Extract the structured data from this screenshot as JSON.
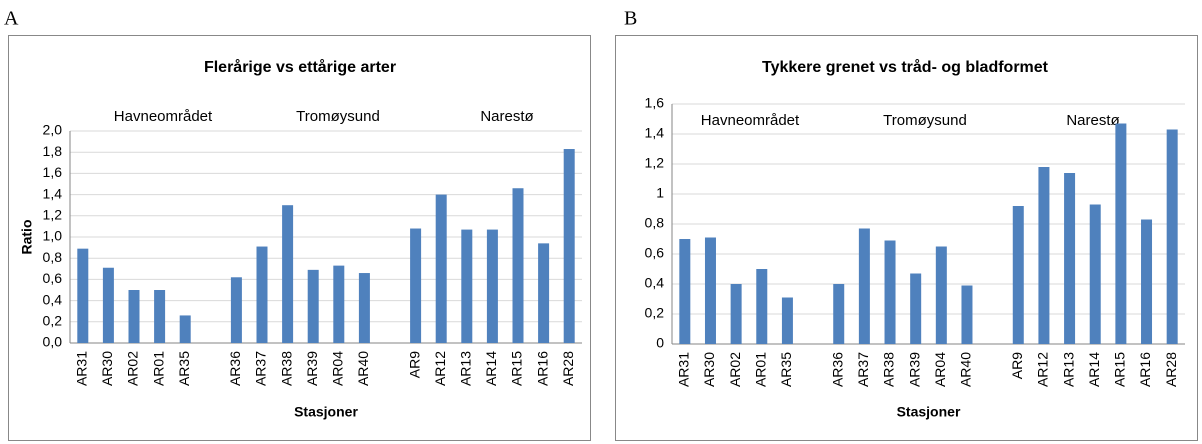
{
  "chart_data": [
    {
      "type": "bar",
      "panel": "A",
      "title": "Flerårige vs ettårige arter",
      "ylabel": "Ratio",
      "xlabel": "Stasjoner",
      "annotations": [
        "Havneområdet",
        "Tromøysund",
        "Narestø"
      ],
      "categories": [
        "AR31",
        "AR30",
        "AR02",
        "AR01",
        "AR35",
        null,
        "AR36",
        "AR37",
        "AR38",
        "AR39",
        "AR04",
        "AR40",
        null,
        "AR9",
        "AR12",
        "AR13",
        "AR14",
        "AR15",
        "AR16",
        "AR28"
      ],
      "values": [
        0.89,
        0.71,
        0.5,
        0.5,
        0.26,
        null,
        0.62,
        0.91,
        1.3,
        0.69,
        0.73,
        0.66,
        null,
        1.08,
        1.4,
        1.07,
        1.07,
        1.46,
        0.94,
        1.83
      ],
      "color": "#4f81bd",
      "grid": true,
      "ylim": [
        0,
        2.0
      ],
      "yticks": [
        {
          "value": 0,
          "label": "0,0"
        },
        {
          "value": 0.2,
          "label": "0,2"
        },
        {
          "value": 0.4,
          "label": "0,4"
        },
        {
          "value": 0.6,
          "label": "0,6"
        },
        {
          "value": 0.8,
          "label": "0,8"
        },
        {
          "value": 1.0,
          "label": "1,0"
        },
        {
          "value": 1.2,
          "label": "1,2"
        },
        {
          "value": 1.4,
          "label": "1,4"
        },
        {
          "value": 1.6,
          "label": "1,6"
        },
        {
          "value": 1.8,
          "label": "1,8"
        },
        {
          "value": 2.0,
          "label": "2,0"
        }
      ]
    },
    {
      "type": "bar",
      "panel": "B",
      "title": "Tykkere grenet vs tråd- og bladformet",
      "xlabel": "Stasjoner",
      "annotations": [
        "Havneområdet",
        "Tromøysund",
        "Narestø"
      ],
      "categories": [
        "AR31",
        "AR30",
        "AR02",
        "AR01",
        "AR35",
        null,
        "AR36",
        "AR37",
        "AR38",
        "AR39",
        "AR04",
        "AR40",
        null,
        "AR9",
        "AR12",
        "AR13",
        "AR14",
        "AR15",
        "AR16",
        "AR28"
      ],
      "values": [
        0.7,
        0.71,
        0.4,
        0.5,
        0.31,
        null,
        0.4,
        0.77,
        0.69,
        0.47,
        0.65,
        0.39,
        null,
        0.92,
        1.18,
        1.14,
        0.93,
        1.47,
        0.83,
        1.43
      ],
      "color": "#4f81bd",
      "grid": true,
      "ylim": [
        0,
        1.6
      ],
      "yticks": [
        0,
        {
          "value": 0.2,
          "label": "0,2"
        },
        {
          "value": 0.4,
          "label": "0,4"
        },
        {
          "value": 0.6,
          "label": "0,6"
        },
        {
          "value": 0.8,
          "label": "0,8"
        },
        1,
        {
          "value": 1.2,
          "label": "1,2"
        },
        {
          "value": 1.4,
          "label": "1,4"
        },
        {
          "value": 1.6,
          "label": "1,6"
        }
      ]
    }
  ]
}
